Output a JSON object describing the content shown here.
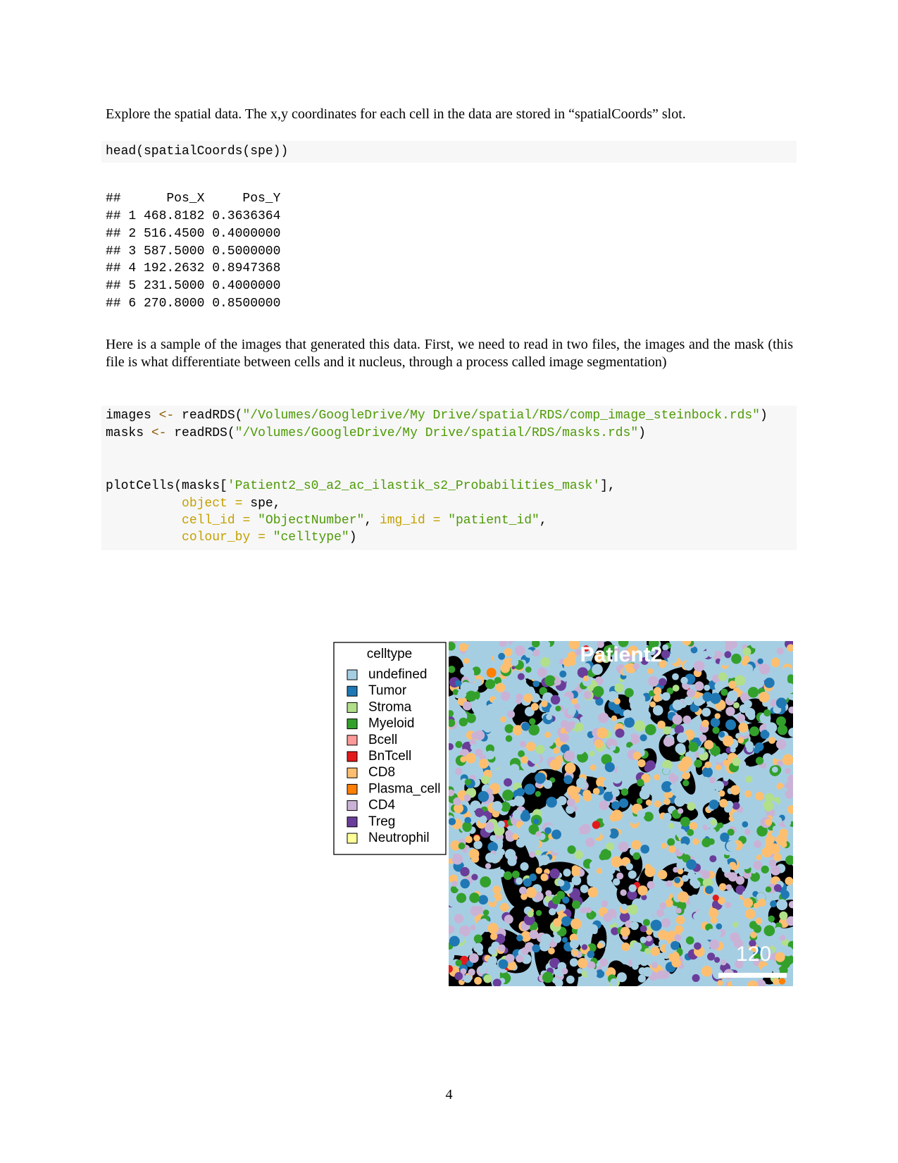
{
  "paragraphs": [
    "Explore the spatial data. The x,y coordinates for each cell in the data are stored in “spatialCoords” slot.",
    "Here is a sample of the images that generated this data. First, we need to read in two files, the images and the mask (this file is what differentiate between cells and it nucleus, through a process called image segmentation)"
  ],
  "code_blocks": [
    {
      "lines": [
        [
          "head(spatialCoords(spe))"
        ]
      ]
    },
    {
      "lines": [
        [
          "images",
          "<-",
          "readRDS(",
          "\"/Volumes/GoogleDrive/My Drive/spatial/RDS/comp_image_steinbock.rds\"",
          ")"
        ],
        [
          "masks",
          "<-",
          "readRDS(",
          "\"/Volumes/GoogleDrive/My Drive/spatial/RDS/masks.rds\"",
          ")"
        ],
        [
          "plotCells(masks[",
          "'Patient2_s0_a2_ac_ilastik_s2_Probabilities_mask'",
          "],"
        ],
        [
          "object",
          "=",
          "spe,"
        ],
        [
          "cell_id",
          "=",
          "\"ObjectNumber\"",
          ",",
          "img_id",
          "=",
          "\"patient_id\"",
          ","
        ],
        [
          "colour_by",
          "=",
          "\"celltype\"",
          ")"
        ]
      ]
    }
  ],
  "output": {
    "header": [
      "##",
      "Pos_X",
      "Pos_Y"
    ],
    "rows": [
      [
        "##",
        "1",
        "468.8182",
        "0.3636364"
      ],
      [
        "##",
        "2",
        "516.4500",
        "0.4000000"
      ],
      [
        "##",
        "3",
        "587.5000",
        "0.5000000"
      ],
      [
        "##",
        "4",
        "192.2632",
        "0.8947368"
      ],
      [
        "##",
        "5",
        "231.5000",
        "0.4000000"
      ],
      [
        "##",
        "6",
        "270.8000",
        "0.8500000"
      ]
    ]
  },
  "figure": {
    "title": "Patient2",
    "legend_title": "celltype",
    "legend": [
      {
        "label": "undefined",
        "color": "#a6cee3"
      },
      {
        "label": "Tumor",
        "color": "#1f78b4"
      },
      {
        "label": "Stroma",
        "color": "#b2df8a"
      },
      {
        "label": "Myeloid",
        "color": "#33a02c"
      },
      {
        "label": "Bcell",
        "color": "#fb9a99"
      },
      {
        "label": "BnTcell",
        "color": "#e31a1c"
      },
      {
        "label": "CD8",
        "color": "#fdbf6f"
      },
      {
        "label": "Plasma_cell",
        "color": "#ff7f00"
      },
      {
        "label": "CD4",
        "color": "#cab2d6"
      },
      {
        "label": "Treg",
        "color": "#6a3d9a"
      },
      {
        "label": "Neutrophil",
        "color": "#ffff99"
      }
    ],
    "scale_label": "120"
  },
  "page_number": "4"
}
